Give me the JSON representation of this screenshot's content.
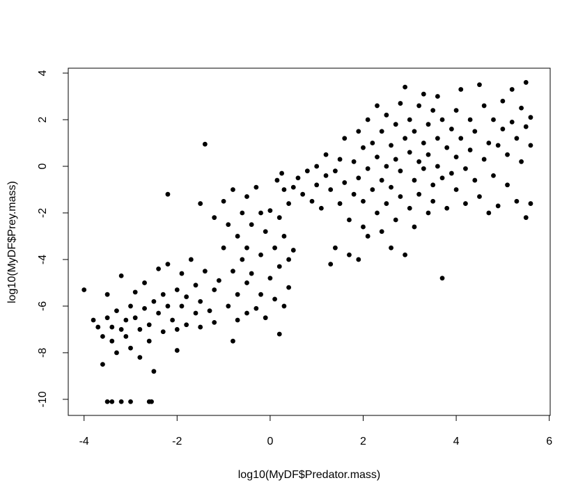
{
  "chart_data": {
    "type": "scatter",
    "xlabel": "log10(MyDF$Predator.mass)",
    "ylabel": "log10(MyDF$Prey.mass)",
    "xlim": [
      -4.34,
      6.02
    ],
    "ylim": [
      -10.69,
      4.21
    ],
    "xticks": [
      -4,
      -2,
      0,
      2,
      4,
      6
    ],
    "yticks": [
      -10,
      -8,
      -6,
      -4,
      -2,
      0,
      2,
      4
    ],
    "color": "#000000",
    "x": [
      -4,
      -3.8,
      -3.7,
      -3.6,
      -3.6,
      -3.5,
      -3.5,
      -3.4,
      -3.4,
      -3.3,
      -3.3,
      -3.2,
      -3.2,
      -3.1,
      -3.1,
      -3.0,
      -3.0,
      -2.9,
      -2.9,
      -2.8,
      -2.8,
      -2.7,
      -2.7,
      -2.6,
      -2.6,
      -2.5,
      -2.5,
      -2.4,
      -2.4,
      -2.3,
      -2.3,
      -2.2,
      -2.2,
      -2.1,
      -2.0,
      -2.0,
      -1.9,
      -1.9,
      -1.8,
      -1.8,
      -1.7,
      -1.6,
      -1.6,
      -1.5,
      -1.5,
      -1.4,
      -1.3,
      -1.2,
      -1.2,
      -1.1,
      -3.5,
      -3.4,
      -3.2,
      -3.0,
      -2.6,
      -2.55,
      -2.2,
      -1.4,
      -2.0,
      -0.8,
      0.2,
      -1.0,
      -1.0,
      -0.9,
      -0.9,
      -0.8,
      -0.8,
      -0.7,
      -0.7,
      -0.7,
      -0.6,
      -0.6,
      -0.5,
      -0.5,
      -0.5,
      -0.5,
      -0.4,
      -0.4,
      -0.3,
      -0.3,
      -0.2,
      -0.2,
      -0.2,
      -0.1,
      -0.1,
      0.0,
      0.0,
      0.1,
      0.1,
      0.2,
      0.2,
      0.3,
      0.3,
      0.4,
      0.4,
      0.4,
      0.5,
      0.5,
      -1.2,
      -1.5,
      0.3,
      0.25,
      0.15,
      0.6,
      0.7,
      0.8,
      0.9,
      1.0,
      1.0,
      1.1,
      1.2,
      1.2,
      1.3,
      1.3,
      1.4,
      1.4,
      1.5,
      1.5,
      1.6,
      1.6,
      1.7,
      1.7,
      1.8,
      1.8,
      1.9,
      1.9,
      1.9,
      2.0,
      2.0,
      2.0,
      2.1,
      2.1,
      2.1,
      2.2,
      2.2,
      2.3,
      2.3,
      2.3,
      2.4,
      2.4,
      2.4,
      2.5,
      2.5,
      2.5,
      2.6,
      2.6,
      2.6,
      2.7,
      2.7,
      2.7,
      2.8,
      2.8,
      2.8,
      2.9,
      2.9,
      2.9,
      3.0,
      3.0,
      3.0,
      3.1,
      3.1,
      3.1,
      3.2,
      3.2,
      3.2,
      3.3,
      3.3,
      3.3,
      3.4,
      3.4,
      3.4,
      3.5,
      3.5,
      3.5,
      3.6,
      3.6,
      3.6,
      3.7,
      3.7,
      3.7,
      3.8,
      3.8,
      3.9,
      3.9,
      4.0,
      4.0,
      4.0,
      4.1,
      4.1,
      4.2,
      4.2,
      4.3,
      4.3,
      4.4,
      4.4,
      4.5,
      4.5,
      4.6,
      4.6,
      4.7,
      4.7,
      4.8,
      4.8,
      4.9,
      4.9,
      5.0,
      5.0,
      5.1,
      5.1,
      5.2,
      5.2,
      5.3,
      5.3,
      5.4,
      5.4,
      5.5,
      5.5,
      5.5,
      5.6,
      5.6,
      5.6
    ],
    "y": [
      -5.3,
      -6.6,
      -6.9,
      -7.3,
      -8.5,
      -5.5,
      -6.5,
      -7.5,
      -6.9,
      -8.0,
      -6.2,
      -7.0,
      -4.7,
      -6.6,
      -7.3,
      -6.0,
      -7.8,
      -6.5,
      -5.4,
      -7.0,
      -8.2,
      -6.1,
      -5.0,
      -6.8,
      -7.5,
      -5.8,
      -8.8,
      -6.3,
      -4.4,
      -5.5,
      -7.1,
      -6.0,
      -4.2,
      -6.6,
      -5.3,
      -7.0,
      -6.0,
      -4.6,
      -6.8,
      -5.6,
      -4.0,
      -6.3,
      -5.1,
      -6.9,
      -5.8,
      -4.5,
      -6.2,
      -5.3,
      -6.7,
      -4.9,
      -10.1,
      -10.1,
      -10.1,
      -10.1,
      -10.1,
      -10.1,
      -1.2,
      0.95,
      -7.9,
      -7.5,
      -7.2,
      -1.5,
      -3.5,
      -6.0,
      -2.5,
      -4.5,
      -1.0,
      -3.0,
      -5.5,
      -6.6,
      -2.0,
      -4.0,
      -1.3,
      -3.5,
      -5.0,
      -6.3,
      -2.5,
      -4.6,
      -0.9,
      -6.1,
      -2.0,
      -3.8,
      -5.5,
      -2.8,
      -6.5,
      -4.8,
      -1.9,
      -3.5,
      -5.7,
      -2.2,
      -4.3,
      -6.0,
      -3.0,
      -1.6,
      -4.0,
      -5.2,
      -0.9,
      -3.6,
      -2.2,
      -1.6,
      -1.0,
      -0.3,
      -0.6,
      -0.5,
      -1.2,
      -0.2,
      -1.5,
      0.0,
      -0.8,
      -1.8,
      -0.4,
      0.5,
      -1.0,
      -4.2,
      -0.2,
      -3.5,
      0.3,
      -1.6,
      -0.7,
      1.2,
      -2.3,
      -3.8,
      0.2,
      -1.2,
      1.5,
      -0.5,
      -4.0,
      -2.6,
      0.8,
      -1.5,
      -0.1,
      2.0,
      -3.0,
      1.0,
      -1.0,
      -2.0,
      0.4,
      2.6,
      -0.6,
      1.5,
      -2.8,
      0.0,
      -1.6,
      2.2,
      -3.5,
      0.9,
      -0.9,
      1.8,
      -2.3,
      0.3,
      -1.3,
      2.7,
      -0.2,
      1.2,
      -3.8,
      3.4,
      0.6,
      -1.8,
      2.0,
      -0.6,
      1.5,
      -2.6,
      0.2,
      2.6,
      -1.2,
      1.0,
      -0.1,
      3.1,
      -2.0,
      1.8,
      0.5,
      -0.8,
      2.4,
      -1.5,
      1.2,
      0.0,
      3.0,
      -0.5,
      2.0,
      -4.8,
      0.8,
      -1.8,
      1.6,
      -0.3,
      2.4,
      0.4,
      -1.0,
      1.2,
      3.3,
      -0.1,
      -1.6,
      2.0,
      0.7,
      -0.6,
      1.5,
      3.5,
      -1.3,
      0.3,
      2.6,
      -2.0,
      1.0,
      -0.4,
      2.0,
      0.9,
      -1.7,
      1.6,
      2.8,
      0.5,
      -0.8,
      1.9,
      3.3,
      -1.5,
      1.2,
      2.5,
      0.2,
      1.7,
      3.6,
      -2.2,
      0.9,
      2.1,
      -1.6
    ]
  }
}
